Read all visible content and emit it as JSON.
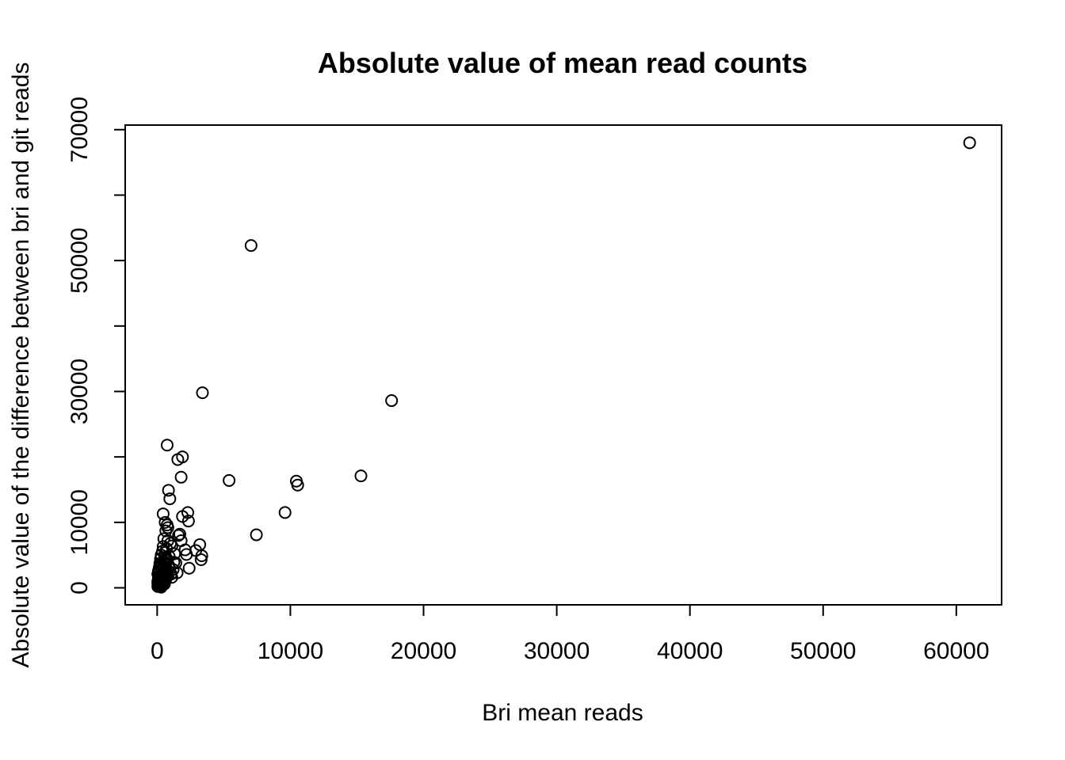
{
  "chart_data": {
    "type": "scatter",
    "title": "Absolute value of mean read counts",
    "xlabel": "Bri mean reads",
    "ylabel": "Absolute value of the difference between bri and git reads",
    "xlim": [
      -2400,
      63400
    ],
    "ylim": [
      -2600,
      70700
    ],
    "xticks": [
      0,
      10000,
      20000,
      30000,
      40000,
      50000,
      60000
    ],
    "xtick_labels": [
      "0",
      "10000",
      "20000",
      "30000",
      "40000",
      "50000",
      "60000"
    ],
    "yticks": [
      0,
      10000,
      20000,
      30000,
      40000,
      50000,
      60000,
      70000
    ],
    "ytick_labels": [
      "0",
      "10000",
      "",
      "30000",
      "",
      "50000",
      "",
      "70000"
    ],
    "grid": false,
    "marker": "open-circle",
    "x": [
      61000,
      7050,
      3400,
      17600,
      750,
      1900,
      1550,
      1800,
      5400,
      10450,
      10550,
      15300,
      850,
      950,
      2300,
      9600,
      450,
      1900,
      2350,
      600,
      750,
      800,
      7450,
      1600,
      1700,
      3200,
      2900,
      3350,
      3300,
      2200,
      2400,
      1500,
      1200,
      900,
      450,
      800,
      1100,
      1800,
      2100,
      650,
      500,
      1000,
      1300,
      700,
      600,
      400,
      900,
      550,
      700,
      1400,
      300,
      500,
      850,
      250,
      450,
      600,
      350,
      200,
      400,
      550,
      150,
      300,
      100,
      250,
      50,
      150,
      350,
      200,
      100,
      50,
      400,
      300,
      250,
      150,
      100,
      450,
      650,
      750,
      950,
      1100,
      600,
      500,
      800,
      1050,
      1250,
      700,
      400,
      550,
      350,
      650,
      200,
      300,
      150,
      500,
      250,
      100,
      50,
      400,
      600,
      300,
      200,
      150,
      100,
      50
    ],
    "y": [
      68000,
      52300,
      29800,
      28600,
      21800,
      20000,
      19600,
      16900,
      16400,
      16300,
      15700,
      17100,
      14900,
      13600,
      11500,
      11500,
      11300,
      10900,
      10200,
      10000,
      9600,
      9200,
      8100,
      8000,
      8200,
      6600,
      5700,
      4900,
      4300,
      5100,
      3000,
      2300,
      2800,
      3200,
      6300,
      7200,
      6400,
      7200,
      5800,
      8700,
      7500,
      6800,
      5200,
      6000,
      5400,
      5600,
      4800,
      4600,
      4200,
      3800,
      5000,
      4000,
      3500,
      4400,
      3100,
      3600,
      2800,
      3400,
      2500,
      2700,
      3000,
      2200,
      2600,
      1900,
      2100,
      1500,
      1800,
      1300,
      1000,
      700,
      1200,
      900,
      600,
      500,
      300,
      2000,
      1700,
      2400,
      2900,
      1600,
      1400,
      1100,
      1900,
      2100,
      3900,
      4500,
      800,
      600,
      400,
      1300,
      200,
      100,
      400,
      700,
      500,
      800,
      200,
      1600,
      2600,
      3300,
      3700,
      2300,
      1500,
      1000
    ]
  }
}
